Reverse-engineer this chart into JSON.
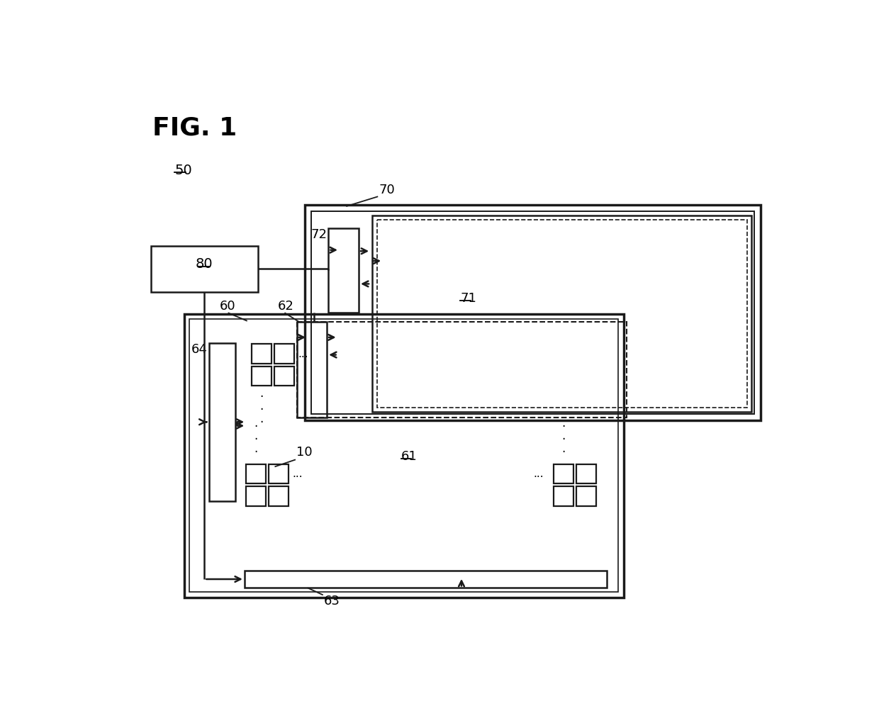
{
  "title": "FIG. 1",
  "bg_color": "#ffffff",
  "label_50": "50",
  "label_60": "60",
  "label_61": "61",
  "label_62": "62",
  "label_63": "63",
  "label_64": "64",
  "label_70": "70",
  "label_71": "71",
  "label_72": "72",
  "label_80": "80",
  "label_10": "10",
  "line_color": "#1a1a1a"
}
